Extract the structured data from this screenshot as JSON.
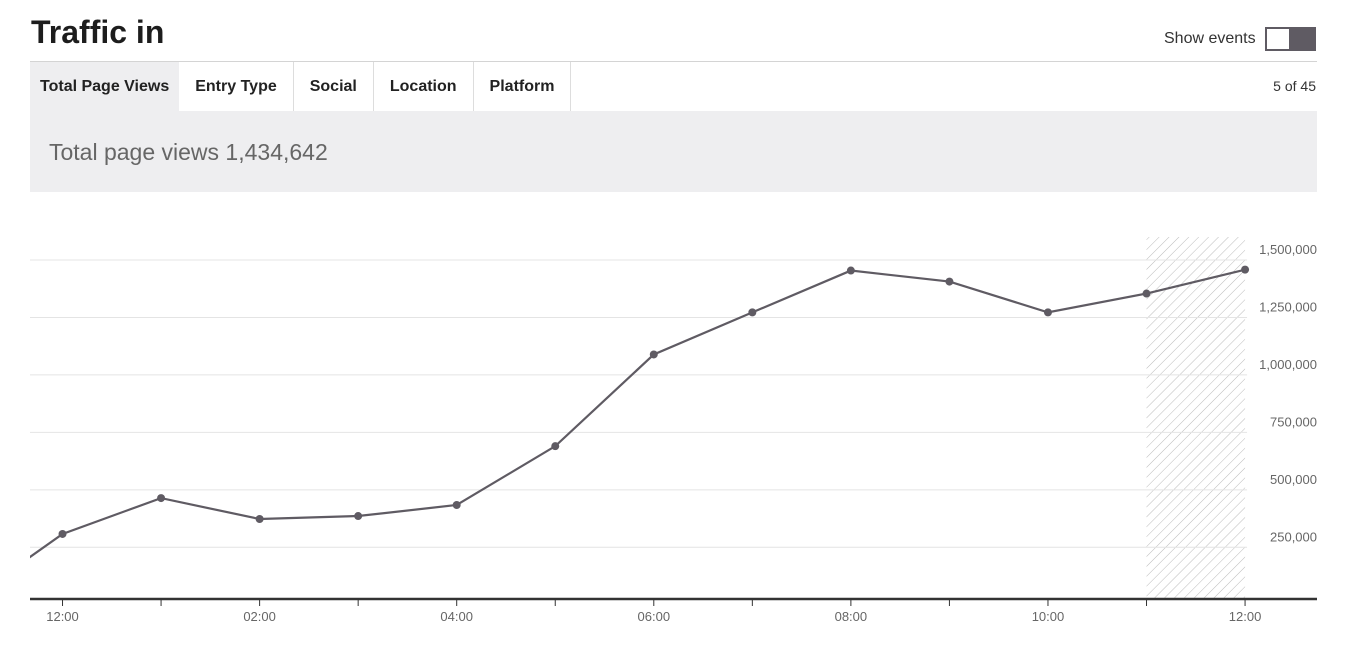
{
  "header": {
    "title": "Traffic in",
    "toggle_label": "Show events"
  },
  "tabs": [
    "Total Page Views",
    "Entry Type",
    "Social",
    "Location",
    "Platform"
  ],
  "pager": "5 of 45",
  "summary": "Total page views 1,434,642",
  "chart_data": {
    "type": "line",
    "x": [
      -0.5,
      0,
      1,
      2,
      3,
      4,
      5,
      6,
      7,
      8,
      9,
      10,
      11,
      12
    ],
    "series": [
      {
        "color": "#5f5b63",
        "values": [
          156000,
          308000,
          464000,
          373000,
          386000,
          434000,
          690000,
          1089000,
          1272000,
          1454000,
          1406000,
          1272000,
          1354000,
          1458000
        ]
      }
    ],
    "xlim": [
      -0.33,
      12.73
    ],
    "xticks": [
      {
        "value": 0,
        "label": "12:00"
      },
      {
        "value": 1,
        "label": null
      },
      {
        "value": 2,
        "label": "02:00"
      },
      {
        "value": 3,
        "label": null
      },
      {
        "value": 4,
        "label": "04:00"
      },
      {
        "value": 5,
        "label": null
      },
      {
        "value": 6,
        "label": "06:00"
      },
      {
        "value": 7,
        "label": null
      },
      {
        "value": 8,
        "label": "08:00"
      },
      {
        "value": 9,
        "label": null
      },
      {
        "value": 10,
        "label": "10:00"
      },
      {
        "value": 11,
        "label": null
      },
      {
        "value": 12,
        "label": "12:00"
      }
    ],
    "ylim": [
      25000,
      1600000
    ],
    "yticks": [
      {
        "value": 250000,
        "label": "250,000"
      },
      {
        "value": 500000,
        "label": "500,000"
      },
      {
        "value": 750000,
        "label": "750,000"
      },
      {
        "value": 1000000,
        "label": "1,000,000"
      },
      {
        "value": 1250000,
        "label": "1,250,000"
      },
      {
        "value": 1500000,
        "label": "1,500,000"
      }
    ],
    "shaded_range": [
      11,
      12
    ],
    "grid": true
  }
}
